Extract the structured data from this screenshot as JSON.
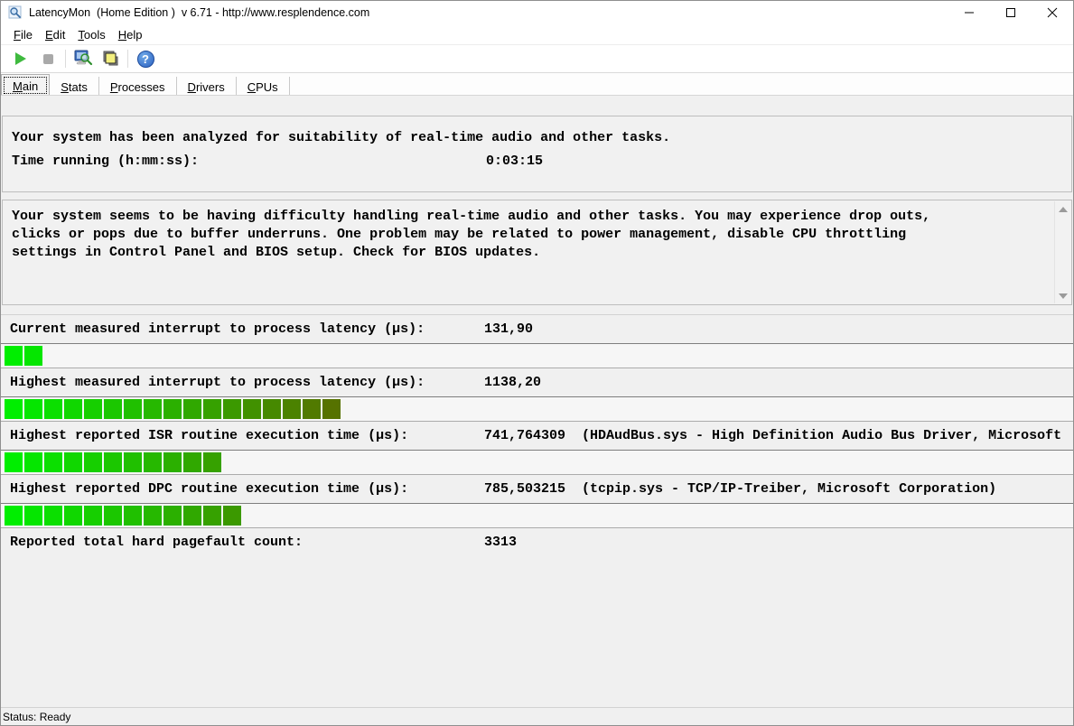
{
  "window": {
    "title": "LatencyMon  (Home Edition )  v 6.71 - http://www.resplendence.com"
  },
  "menu": {
    "items": [
      {
        "accel": "F",
        "rest": "ile"
      },
      {
        "accel": "E",
        "rest": "dit"
      },
      {
        "accel": "T",
        "rest": "ools"
      },
      {
        "accel": "H",
        "rest": "elp"
      }
    ]
  },
  "toolbar": {
    "buttons": [
      "start-monitor",
      "stop-monitor",
      "analyze",
      "options",
      "help"
    ]
  },
  "tabs": [
    {
      "accel": "M",
      "rest": "ain"
    },
    {
      "accel": "S",
      "rest": "tats"
    },
    {
      "accel": "P",
      "rest": "rocesses"
    },
    {
      "accel": "D",
      "rest": "rivers"
    },
    {
      "accel": "C",
      "rest": "PUs"
    }
  ],
  "analysis": {
    "line1": "Your system has been analyzed for suitability of real-time audio and other tasks.",
    "time_label": "Time running (h:mm:ss):",
    "time_value": "0:03:15"
  },
  "warning": {
    "lines": [
      "Your system seems to be having difficulty handling real-time audio and other tasks. You may experience drop outs,",
      "clicks or pops due to buffer underruns. One problem may be related to power management, disable CPU throttling",
      "settings in Control Panel and BIOS setup. Check for BIOS updates."
    ]
  },
  "measurements": {
    "bar_color_start": "#00ee00",
    "bar_color_end": "#567200",
    "max_segments": 17,
    "rows": [
      {
        "label": "Current measured interrupt to process latency (µs):",
        "value": "131,90",
        "info": "",
        "segments": 2
      },
      {
        "label": "Highest measured interrupt to process latency (µs):",
        "value": "1138,20",
        "info": "",
        "segments": 17
      },
      {
        "label": "Highest reported ISR routine execution time (µs):",
        "value": "741,764309",
        "info": "(HDAudBus.sys - High Definition Audio Bus Driver, Microsoft",
        "segments": 11
      },
      {
        "label": "Highest reported DPC routine execution time (µs):",
        "value": "785,503215",
        "info": "(tcpip.sys - TCP/IP-Treiber, Microsoft Corporation)",
        "segments": 12
      },
      {
        "label": "Reported total hard pagefault count:",
        "value": "3313",
        "info": "",
        "segments": 0
      }
    ]
  },
  "status_bar": {
    "text": "Status: Ready"
  }
}
